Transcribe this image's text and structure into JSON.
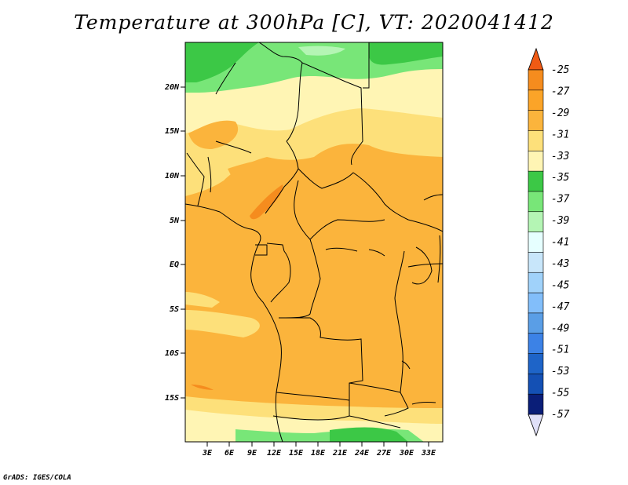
{
  "title": "Temperature at 300hPa [C], VT: 2020041412",
  "credit": "GrADS: IGES/COLA",
  "map": {
    "lat_labels": [
      "20N",
      "15N",
      "10N",
      "5N",
      "EQ",
      "5S",
      "10S",
      "15S"
    ],
    "lon_labels": [
      "3E",
      "6E",
      "9E",
      "12E",
      "15E",
      "18E",
      "21E",
      "24E",
      "27E",
      "30E",
      "33E"
    ]
  },
  "colorbar": {
    "levels": [
      "-25",
      "-27",
      "-29",
      "-31",
      "-33",
      "-35",
      "-37",
      "-39",
      "-41",
      "-43",
      "-45",
      "-47",
      "-49",
      "-51",
      "-53",
      "-55",
      "-57"
    ],
    "colors": [
      "#f05a14",
      "#f58c1e",
      "#fba428",
      "#fbb43c",
      "#fde07a",
      "#fff5b4",
      "#3cc846",
      "#78e678",
      "#b4f5b4",
      "#e6ffff",
      "#c8e6fa",
      "#a0d2fa",
      "#82befa",
      "#5a9ee6",
      "#3c82e6",
      "#1e64c8",
      "#1450b4",
      "#0a1e78",
      "#e0e0f8"
    ]
  }
}
